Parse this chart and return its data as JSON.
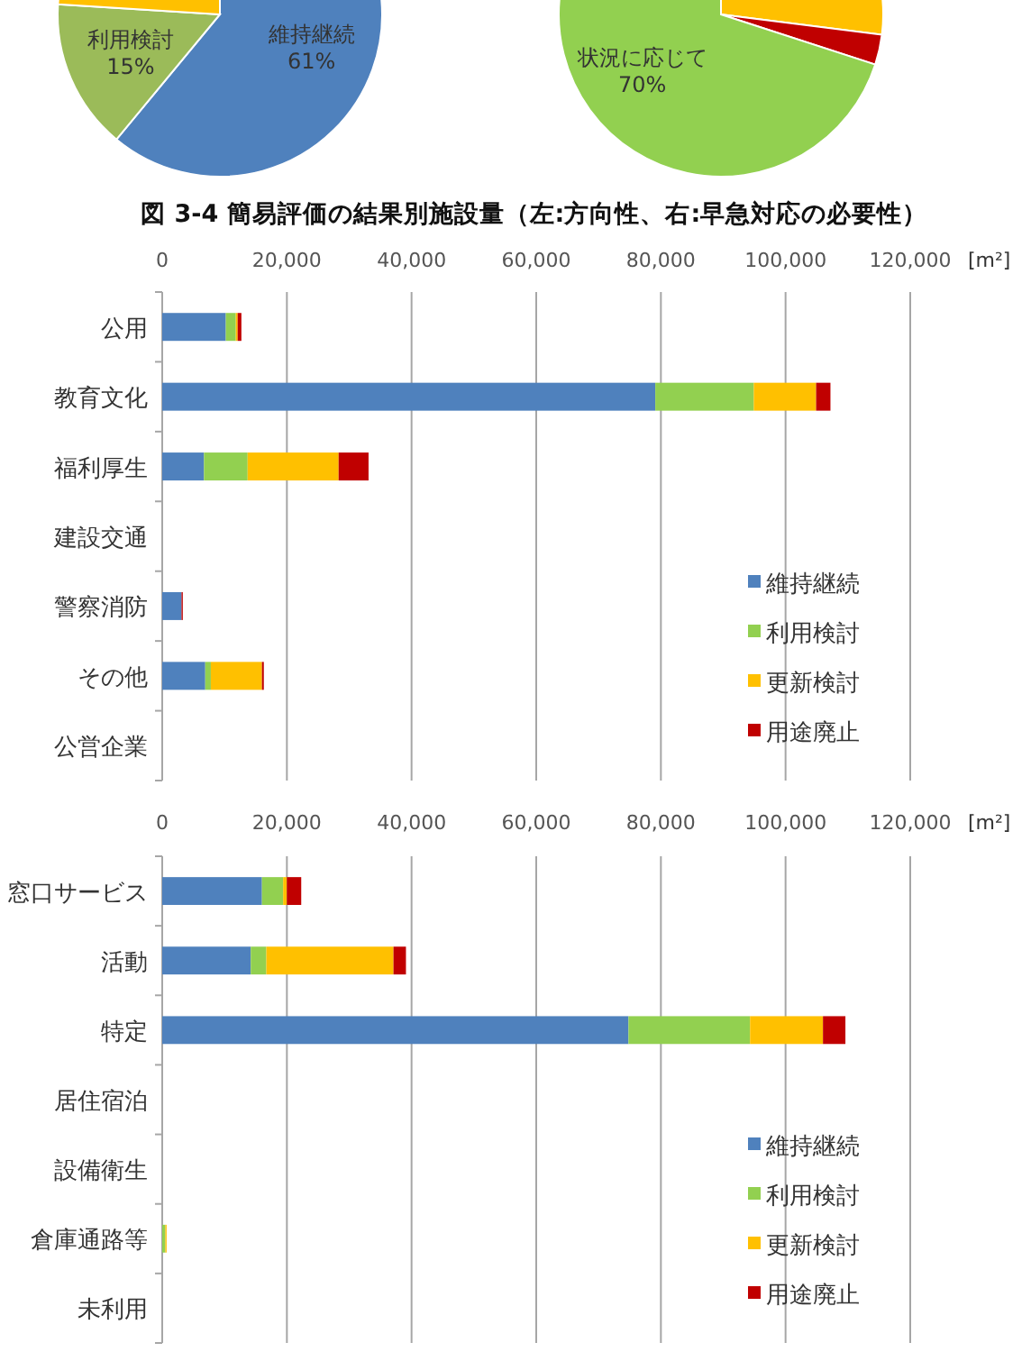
{
  "chart_data": [
    {
      "type": "pie",
      "categories": [
        "維持継続",
        "利用検討",
        null
      ],
      "values": [
        61,
        15,
        24
      ],
      "colors": [
        "#4f81bd",
        "#9bbb59",
        "#ffc000"
      ],
      "value_labels": [
        "61%",
        "15%",
        null
      ],
      "annotations": [
        "図 3-4  簡易評価の結果別施設量（左:方向性、右:早急対応の必要性）"
      ]
    },
    {
      "type": "pie",
      "categories": [
        null,
        null,
        "状況に応じて"
      ],
      "values": [
        27,
        3,
        70
      ],
      "colors": [
        "#ffc000",
        "#c00000",
        "#92d050"
      ],
      "value_labels": [
        null,
        null,
        "70%"
      ]
    },
    {
      "type": "bar",
      "orientation": "horizontal",
      "stacked": true,
      "xlabel": "[m²]",
      "categories": [
        "公用",
        "教育文化",
        "福利厚生",
        "建設交通",
        "警察消防",
        "その他",
        "公営企業"
      ],
      "xlim": [
        0,
        120000
      ],
      "xticks": [
        {
          "value": 0,
          "label": "0"
        },
        {
          "value": 20000,
          "label": "20,000"
        },
        {
          "value": 40000,
          "label": "40,000"
        },
        {
          "value": 60000,
          "label": "60,000"
        },
        {
          "value": 80000,
          "label": "80,000"
        },
        {
          "value": 100000,
          "label": "100,000"
        },
        {
          "value": 120000,
          "label": "120,000"
        }
      ],
      "grid": "x",
      "legend": "bottom right",
      "series": [
        {
          "name": "維持継続",
          "color": "#4f81bd",
          "values": [
            10200,
            79100,
            6700,
            0,
            3100,
            6900,
            0
          ]
        },
        {
          "name": "利用検討",
          "color": "#92d050",
          "values": [
            1600,
            15800,
            7000,
            0,
            0,
            900,
            0
          ]
        },
        {
          "name": "更新検討",
          "color": "#ffc000",
          "values": [
            300,
            10000,
            14600,
            0,
            0,
            8200,
            0
          ]
        },
        {
          "name": "用途廃止",
          "color": "#c00000",
          "values": [
            600,
            2300,
            4800,
            0,
            200,
            300,
            0
          ]
        }
      ]
    },
    {
      "type": "bar",
      "orientation": "horizontal",
      "stacked": true,
      "xlabel": "[m²]",
      "categories": [
        "窓口サービス",
        "活動",
        "特定",
        "居住宿泊",
        "設備衛生",
        "倉庫通路等",
        "未利用"
      ],
      "xlim": [
        0,
        120000
      ],
      "xticks": [
        {
          "value": 0,
          "label": "0"
        },
        {
          "value": 20000,
          "label": "20,000"
        },
        {
          "value": 40000,
          "label": "40,000"
        },
        {
          "value": 60000,
          "label": "60,000"
        },
        {
          "value": 80000,
          "label": "80,000"
        },
        {
          "value": 100000,
          "label": "100,000"
        },
        {
          "value": 120000,
          "label": "120,000"
        }
      ],
      "grid": "x",
      "legend": "bottom right",
      "series": [
        {
          "name": "維持継続",
          "color": "#4f81bd",
          "values": [
            16000,
            14200,
            74800,
            0,
            0,
            0,
            0
          ]
        },
        {
          "name": "利用検討",
          "color": "#92d050",
          "values": [
            3400,
            2500,
            19500,
            0,
            0,
            500,
            0
          ]
        },
        {
          "name": "更新検討",
          "color": "#ffc000",
          "values": [
            600,
            20400,
            11700,
            0,
            0,
            200,
            0
          ]
        },
        {
          "name": "用途廃止",
          "color": "#c00000",
          "values": [
            2300,
            2000,
            3600,
            0,
            0,
            0,
            0
          ]
        }
      ]
    }
  ]
}
